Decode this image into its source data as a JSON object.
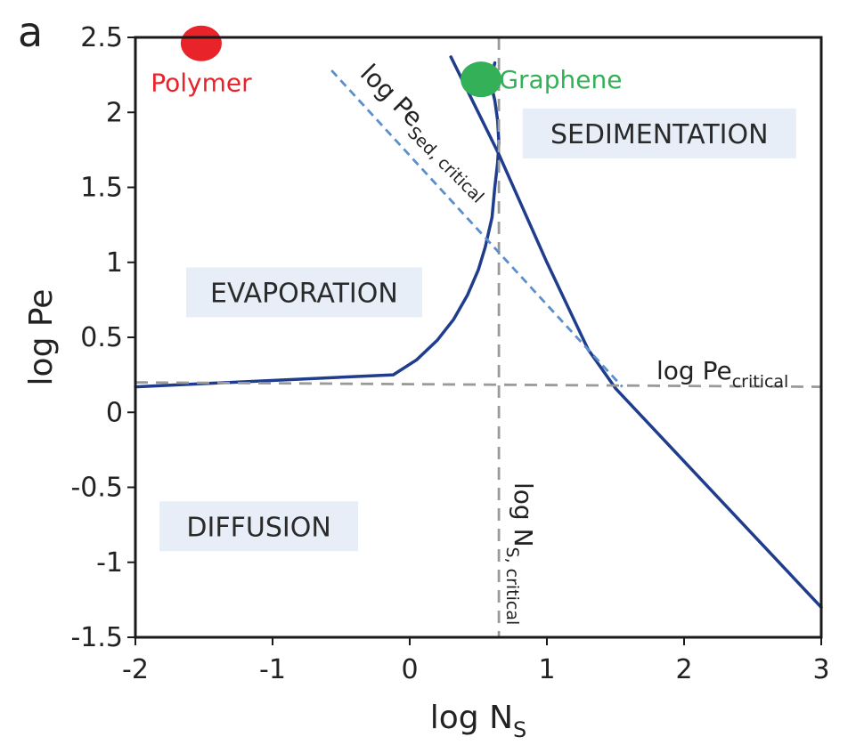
{
  "chart_data": {
    "type": "line",
    "panel_label": "a",
    "xlabel": "log N",
    "xlabel_sub": "S",
    "ylabel": "log Pe",
    "xlim": [
      -2,
      3
    ],
    "ylim": [
      -1.5,
      2.5
    ],
    "x_ticks": [
      -2,
      -1,
      0,
      1,
      2,
      3
    ],
    "x_tick_labels": [
      "-2",
      "-1",
      "0",
      "1",
      "2",
      "3"
    ],
    "y_ticks": [
      -1.5,
      -1,
      -0.5,
      0,
      0.5,
      1,
      1.5,
      2,
      2.5
    ],
    "y_tick_labels": [
      "-1.5",
      "-1",
      "-0.5",
      "0",
      "0.5",
      "1",
      "1.5",
      "2",
      "2.5"
    ],
    "grid": false,
    "regions": [
      {
        "name": "SEDIMENTATION",
        "x": 1.82,
        "y": 1.86
      },
      {
        "name": "EVAPORATION",
        "x": -0.77,
        "y": 0.8
      },
      {
        "name": "DIFFUSION",
        "x": -1.1,
        "y": -0.76
      }
    ],
    "markers": [
      {
        "name": "Polymer",
        "x": -1.52,
        "y": 2.46,
        "color": "#e8232a",
        "label_x": -1.52,
        "label_y": 2.2
      },
      {
        "name": "Graphene",
        "x": 0.52,
        "y": 2.22,
        "color": "#33b058",
        "label_x": 1.1,
        "label_y": 2.22
      }
    ],
    "lines": [
      {
        "role": "boundary",
        "style": "solid",
        "color": "#1f3d8c",
        "x": [
          -2,
          -0.12,
          0.05,
          0.2,
          0.32,
          0.42,
          0.5,
          0.55,
          0.6,
          0.62,
          0.64,
          0.65,
          0.64,
          0.62,
          0.6,
          0.6,
          0.62
        ],
        "y": [
          0.17,
          0.25,
          0.35,
          0.48,
          0.62,
          0.78,
          0.95,
          1.1,
          1.3,
          1.5,
          1.66,
          1.8,
          1.95,
          2.08,
          2.16,
          2.25,
          2.33
        ]
      },
      {
        "role": "boundary",
        "style": "solid",
        "color": "#1f3d8c",
        "x": [
          0.3,
          0.65,
          1.0,
          1.3,
          1.5,
          3.0
        ],
        "y": [
          2.37,
          1.72,
          1.0,
          0.42,
          0.16,
          -1.3
        ]
      },
      {
        "role": "log Pe critical",
        "style": "dashed",
        "color": "#9a9a9a",
        "x": [
          -2,
          3
        ],
        "y": [
          0.2,
          0.17
        ]
      },
      {
        "role": "log N_S critical",
        "style": "dashed",
        "color": "#9a9a9a",
        "x": [
          0.65,
          0.65
        ],
        "y": [
          2.5,
          -1.5
        ]
      },
      {
        "role": "log Pe_Sed critical",
        "style": "dashed",
        "color": "#5b8fcc",
        "x": [
          -0.57,
          1.55
        ],
        "y": [
          2.28,
          0.17
        ]
      }
    ],
    "annotations": {
      "pe_critical": {
        "main": "log Pe",
        "sub": "critical"
      },
      "pe_sed_critical": {
        "main": "log Pe",
        "sub": "Sed, critical"
      },
      "ns_critical": {
        "main": "log N",
        "sub": "S, critical"
      }
    }
  }
}
